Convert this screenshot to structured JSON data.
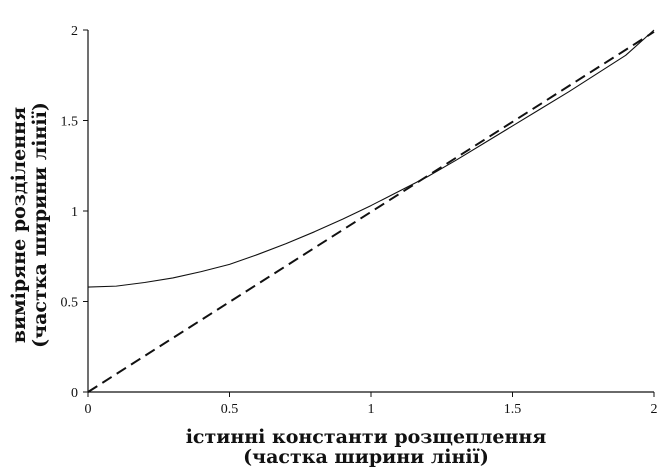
{
  "chart_data": {
    "type": "line",
    "title": "",
    "xlabel": [
      "істинні константи розщеплення",
      "(частка ширини лінії)"
    ],
    "ylabel": [
      "виміряне розділення",
      "(частка ширини лінії)"
    ],
    "xlim": [
      0,
      2
    ],
    "ylim": [
      0,
      2
    ],
    "x_ticks": [
      0,
      0.5,
      1,
      1.5,
      2
    ],
    "x_tick_labels": [
      "0",
      "0.5",
      "1",
      "1.5",
      "2"
    ],
    "y_ticks": [
      0,
      0.5,
      1,
      1.5,
      2
    ],
    "y_tick_labels": [
      "0",
      "0.5",
      "1",
      "1.5",
      "2"
    ],
    "grid": false,
    "legend": "none",
    "series": [
      {
        "style": "solid",
        "color": "#111111",
        "x": [
          0,
          0.1,
          0.2,
          0.3,
          0.4,
          0.5,
          0.6,
          0.7,
          0.8,
          0.9,
          1.0,
          1.1,
          1.2,
          1.3,
          1.4,
          1.5,
          1.6,
          1.7,
          1.8,
          1.9,
          2.0
        ],
        "y": [
          0.58,
          0.585,
          0.605,
          0.63,
          0.665,
          0.705,
          0.76,
          0.82,
          0.885,
          0.955,
          1.03,
          1.11,
          1.19,
          1.28,
          1.375,
          1.47,
          1.565,
          1.66,
          1.76,
          1.86,
          2.0
        ]
      },
      {
        "style": "dashed",
        "color": "#111111",
        "x": [
          0,
          2
        ],
        "y": [
          0,
          1.99
        ]
      }
    ]
  }
}
